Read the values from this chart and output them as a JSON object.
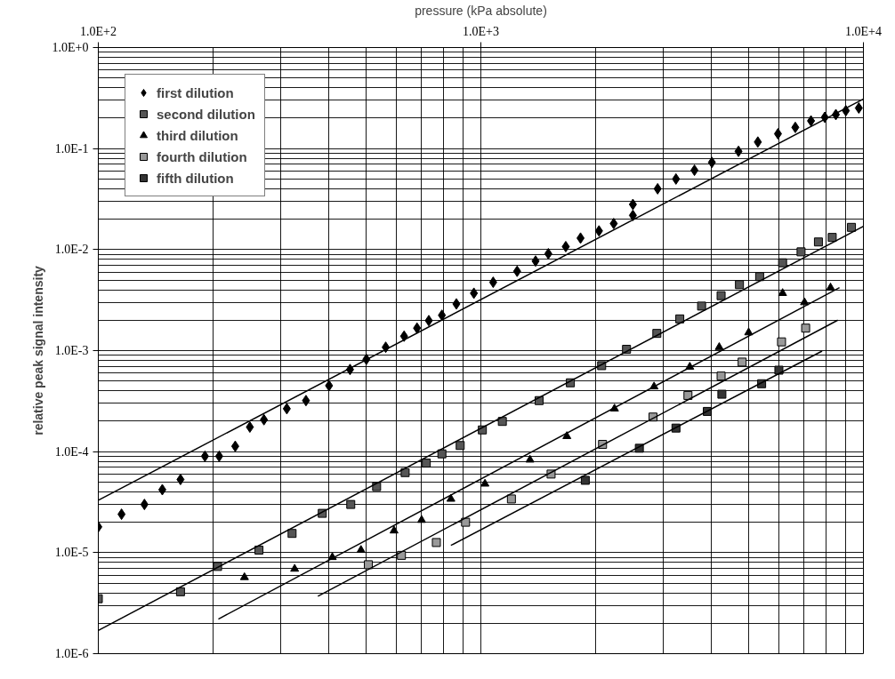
{
  "chart_data": {
    "type": "scatter",
    "xlabel": "pressure (kPa absolute)",
    "ylabel": "relative peak signal intensity",
    "log": "xy",
    "grid": true,
    "legend": "top left",
    "xlim": [
      100,
      10000
    ],
    "ylim": [
      1e-06,
      1
    ],
    "xticks": [
      {
        "value": 100,
        "label": "1.0E+2"
      },
      {
        "value": 1000,
        "label": "1.0E+3"
      },
      {
        "value": 10000,
        "label": "1.0E+4"
      }
    ],
    "yticks": [
      {
        "value": 1e-06,
        "label": "1.0E-6"
      },
      {
        "value": 1e-05,
        "label": "1.0E-5"
      },
      {
        "value": 0.0001,
        "label": "1.0E-4"
      },
      {
        "value": 0.001,
        "label": "1.0E-3"
      },
      {
        "value": 0.01,
        "label": "1.0E-2"
      },
      {
        "value": 0.1,
        "label": "1.0E-1"
      },
      {
        "value": 1,
        "label": "1.0E+0"
      }
    ],
    "series": [
      {
        "name": "first dilution",
        "marker": "diamond",
        "color": "#000000",
        "x": [
          100,
          115,
          132,
          147,
          164,
          190,
          207,
          228,
          249,
          271,
          311,
          349,
          401,
          455,
          502,
          564,
          630,
          681,
          731,
          791,
          863,
          959,
          1077,
          1244,
          1390,
          1501,
          1667,
          1822,
          2036,
          2225,
          2497,
          2497,
          2898,
          3236,
          3617,
          4017,
          4715,
          5297,
          5979,
          6637,
          7295,
          7925,
          8472,
          8995,
          9727
        ],
        "values": [
          1.8e-05,
          2.4e-05,
          3e-05,
          4.2e-05,
          5.3e-05,
          9e-05,
          9e-05,
          0.000113,
          0.000175,
          0.000207,
          0.000266,
          0.00032,
          0.00045,
          0.00065,
          0.00082,
          0.00108,
          0.00139,
          0.00167,
          0.00198,
          0.00224,
          0.0029,
          0.0037,
          0.00475,
          0.0061,
          0.0077,
          0.0091,
          0.0107,
          0.013,
          0.0153,
          0.0181,
          0.0218,
          0.028,
          0.04,
          0.05,
          0.061,
          0.073,
          0.094,
          0.116,
          0.14,
          0.162,
          0.188,
          0.204,
          0.217,
          0.237,
          0.252
        ]
      },
      {
        "name": "second dilution",
        "marker": "square",
        "color": "#555555",
        "x": [
          100,
          164,
          205,
          263,
          321,
          385,
          457,
          534,
          634,
          720,
          791,
          883,
          1009,
          1138,
          1420,
          1714,
          2069,
          2403,
          2884,
          3311,
          3776,
          4246,
          4742,
          5355,
          6148,
          6871,
          7628,
          8287,
          9306
        ],
        "values": [
          3.5e-06,
          4.1e-06,
          7.3e-06,
          1.06e-05,
          1.55e-05,
          2.45e-05,
          3e-05,
          4.5e-05,
          6.2e-05,
          7.7e-05,
          9.5e-05,
          0.000115,
          0.000164,
          0.000199,
          0.00032,
          0.00048,
          0.00071,
          0.00103,
          0.00148,
          0.00206,
          0.00276,
          0.0035,
          0.0045,
          0.0054,
          0.0074,
          0.0095,
          0.0119,
          0.0132,
          0.0166
        ]
      },
      {
        "name": "third dilution",
        "marker": "triangle",
        "color": "#000000",
        "x": [
          241,
          326,
          409,
          486,
          593,
          700,
          835,
          1025,
          1344,
          1678,
          2235,
          2836,
          3517,
          4198,
          5012,
          6148,
          7015,
          8204
        ],
        "values": [
          5.7e-06,
          6.9e-06,
          9e-06,
          1.06e-05,
          1.65e-05,
          2.1e-05,
          3.4e-05,
          4.8e-05,
          8.3e-05,
          0.000142,
          0.000266,
          0.00044,
          0.00069,
          0.00108,
          0.00151,
          0.0037,
          0.003,
          0.0042
        ]
      },
      {
        "name": "fourth dilution",
        "marker": "square",
        "color": "#999999",
        "x": [
          508,
          620,
          765,
          912,
          1202,
          1526,
          2080,
          2818,
          3478,
          4246,
          4819,
          6109,
          7063
        ],
        "values": [
          7.6e-06,
          9.4e-06,
          1.26e-05,
          2e-05,
          3.4e-05,
          6e-05,
          0.000118,
          0.00022,
          0.00036,
          0.00056,
          0.00077,
          0.00122,
          0.00167
        ]
      },
      {
        "name": "fifth dilution",
        "marker": "square",
        "color": "#333333",
        "x": [
          1875,
          2596,
          3236,
          3908,
          4266,
          5420,
          6012
        ],
        "values": [
          5.2e-05,
          0.000108,
          0.000171,
          0.00025,
          0.00037,
          0.00047,
          0.00064
        ]
      },
      {
        "type": "line",
        "marker": "none",
        "color": "#000000",
        "x": [
          100,
          10000
        ],
        "values": [
          3.3e-05,
          0.31
        ]
      },
      {
        "type": "line",
        "marker": "none",
        "color": "#000000",
        "x": [
          100,
          10000
        ],
        "values": [
          1.7e-06,
          0.017
        ]
      },
      {
        "type": "line",
        "marker": "none",
        "color": "#000000",
        "x": [
          206,
          8660
        ],
        "values": [
          2.2e-06,
          0.0042
        ]
      },
      {
        "type": "line",
        "marker": "none",
        "color": "#000000",
        "x": [
          375,
          8570
        ],
        "values": [
          3.7e-06,
          0.002
        ]
      },
      {
        "type": "line",
        "marker": "none",
        "color": "#000000",
        "x": [
          835,
          7798
        ],
        "values": [
          1.18e-05,
          0.00099
        ]
      }
    ]
  }
}
